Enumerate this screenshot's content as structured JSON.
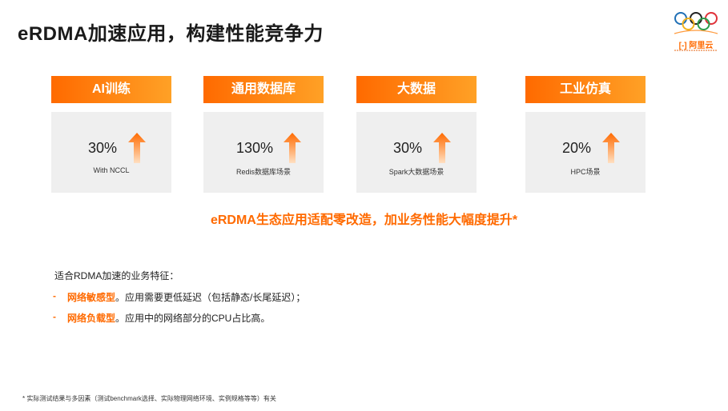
{
  "title": "eRDMA加速应用，构建性能竞争力",
  "logo": {
    "brand": "阿里云"
  },
  "cards": [
    {
      "header": "AI训练",
      "value": "30%",
      "sub": "With NCCL"
    },
    {
      "header": "通用数据库",
      "value": "130%",
      "sub": "Redis数据库场景"
    },
    {
      "header": "大数据",
      "value": "30%",
      "sub": "Spark大数据场景"
    },
    {
      "header": "工业仿真",
      "value": "20%",
      "sub": "HPC场景"
    }
  ],
  "slogan": "eRDMA生态应用适配零改造，加业务性能大幅度提升*",
  "features": {
    "heading": "适合RDMA加速的业务特征：",
    "items": [
      {
        "dash": "-",
        "keyword": "网络敏感型",
        "text": "。应用需要更低延迟（包括静态/长尾延迟）；"
      },
      {
        "dash": "-",
        "keyword": "网络负载型",
        "text": "。应用中的网络部分的CPU占比高。"
      }
    ]
  },
  "footnote": "* 实际测试结果与多因素（测试benchmark选择、实际物理网络环境、实例规格等等）有关",
  "colors": {
    "accent": "#ff6a00",
    "accent_light": "#ffa126",
    "card_bg": "#efefef"
  }
}
